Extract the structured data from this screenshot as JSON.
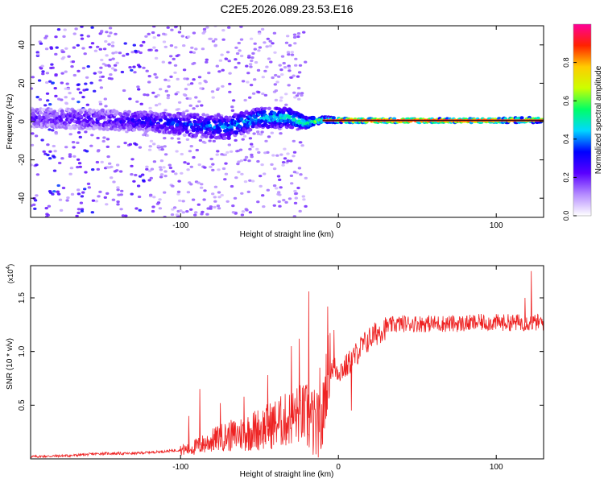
{
  "chart_data": [
    {
      "type": "heatmap",
      "title": "C2E5.2026.089.23.53.E16",
      "xlabel": "Height of straight line (km)",
      "ylabel": "Frequency (Hz)",
      "xlim": [
        -195,
        130
      ],
      "ylim": [
        -50,
        50
      ],
      "xticks": [
        -100,
        0,
        100
      ],
      "yticks": [
        -40,
        -20,
        0,
        20,
        40
      ],
      "colorbar": {
        "label": "Normalized spectral amplitude",
        "range": [
          0,
          1
        ],
        "ticks": [
          "0.0",
          "0.2",
          "0.4",
          "0.6",
          "0.8"
        ],
        "colors": [
          "#ffffff",
          "#b58cff",
          "#5a00ff",
          "#0000ff",
          "#00d8ff",
          "#00ff66",
          "#ccff00",
          "#ffcc00",
          "#ff2200",
          "#ff0099"
        ]
      },
      "ridge": [
        {
          "x": -190,
          "freq": 2,
          "spread": 5,
          "amp": 0.2
        },
        {
          "x": -150,
          "freq": 1,
          "spread": 5,
          "amp": 0.25
        },
        {
          "x": -120,
          "freq": 0,
          "spread": 5,
          "amp": 0.3
        },
        {
          "x": -90,
          "freq": -2,
          "spread": 6,
          "amp": 0.35
        },
        {
          "x": -70,
          "freq": -3,
          "spread": 6,
          "amp": 0.4
        },
        {
          "x": -50,
          "freq": 2,
          "spread": 5,
          "amp": 0.45
        },
        {
          "x": -30,
          "freq": 2,
          "spread": 5,
          "amp": 0.5
        },
        {
          "x": -20,
          "freq": -1,
          "spread": 3,
          "amp": 0.55
        },
        {
          "x": -10,
          "freq": 1,
          "spread": 1.5,
          "amp": 0.65
        },
        {
          "x": 10,
          "freq": 0.5,
          "spread": 1,
          "amp": 0.95
        },
        {
          "x": 50,
          "freq": 0.5,
          "spread": 1,
          "amp": 0.9
        },
        {
          "x": 100,
          "freq": 0.5,
          "spread": 1,
          "amp": 0.85
        },
        {
          "x": 125,
          "freq": 1,
          "spread": 1.5,
          "amp": 0.7
        }
      ]
    },
    {
      "type": "line",
      "xlabel": "Height of straight line (km)",
      "ylabel": "SNR (10 * v/v)",
      "y_multiplier": "(x10",
      "y_multiplier_exponent": "4",
      "y_multiplier_close": ")",
      "xlim": [
        -195,
        130
      ],
      "ylim": [
        0,
        1.8
      ],
      "xticks": [
        -100,
        0,
        100
      ],
      "yticks": [
        0.5,
        1.0,
        1.5
      ],
      "yticklabels": [
        "0.5",
        "1.0",
        "1.5"
      ],
      "color": "#ee2222",
      "series": [
        {
          "name": "SNR",
          "x": [
            -195,
            -170,
            -150,
            -130,
            -110,
            -95,
            -85,
            -75,
            -65,
            -55,
            -45,
            -38,
            -33,
            -28,
            -24,
            -20,
            -16,
            -12,
            -10,
            -8,
            -6,
            -3,
            0,
            5,
            10,
            15,
            20,
            25,
            30,
            35,
            40,
            50,
            60,
            70,
            80,
            90,
            100,
            110,
            120,
            125,
            130
          ],
          "values": [
            0.02,
            0.03,
            0.05,
            0.05,
            0.07,
            0.09,
            0.14,
            0.2,
            0.22,
            0.26,
            0.3,
            0.34,
            0.36,
            0.4,
            0.42,
            0.4,
            0.33,
            0.25,
            0.35,
            0.7,
            0.86,
            0.85,
            0.82,
            0.86,
            0.95,
            1.05,
            1.12,
            1.18,
            1.23,
            1.25,
            1.26,
            1.26,
            1.26,
            1.26,
            1.26,
            1.27,
            1.27,
            1.27,
            1.27,
            1.27,
            1.27
          ]
        }
      ],
      "spikes": [
        {
          "x": -95,
          "value": 0.4
        },
        {
          "x": -88,
          "value": 0.65
        },
        {
          "x": -75,
          "value": 0.52
        },
        {
          "x": -60,
          "value": 0.58
        },
        {
          "x": -45,
          "value": 0.78
        },
        {
          "x": -30,
          "value": 1.05
        },
        {
          "x": -25,
          "value": 1.12
        },
        {
          "x": -19,
          "value": 1.56
        },
        {
          "x": -12,
          "value": 0.85
        },
        {
          "x": -7,
          "value": 1.42
        },
        {
          "x": -3,
          "value": 1.2
        },
        {
          "x": 8,
          "value": 0.45
        },
        {
          "x": 118,
          "value": 1.5
        },
        {
          "x": 122,
          "value": 1.75
        }
      ]
    }
  ]
}
